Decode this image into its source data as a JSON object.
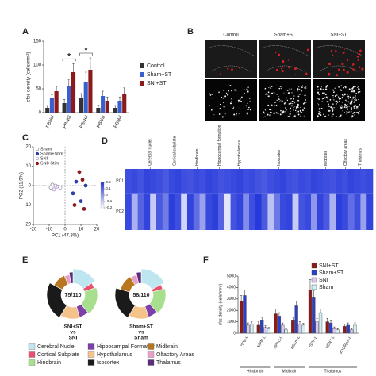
{
  "panel_labels": [
    "A",
    "B",
    "C",
    "D",
    "E",
    "F"
  ],
  "image_panel": {
    "columns": [
      "Control",
      "Sham+ST",
      "SNI+ST"
    ]
  },
  "chart_data": [
    {
      "type": "bar",
      "y_label": "cfos density (cells/mm²)",
      "categories": [
        "PBNcl",
        "PBNdl",
        "PBNel",
        "PBNsl",
        "PBNvl"
      ],
      "series": [
        {
          "name": "Control",
          "color": "#333333",
          "values": [
            10,
            20,
            30,
            10,
            10
          ],
          "errors": [
            5,
            8,
            10,
            6,
            5
          ]
        },
        {
          "name": "Sham+ST",
          "color": "#3a5fcd",
          "values": [
            30,
            55,
            65,
            35,
            25
          ],
          "errors": [
            8,
            15,
            20,
            10,
            8
          ]
        },
        {
          "name": "SNI+ST",
          "color": "#8b1a1a",
          "values": [
            45,
            85,
            90,
            25,
            40
          ],
          "errors": [
            10,
            18,
            25,
            8,
            12
          ]
        }
      ],
      "annotations": [
        {
          "text": "*",
          "category": "PBNdl"
        },
        {
          "text": "*",
          "category": "PBNel"
        }
      ],
      "ylim": [
        0,
        150
      ],
      "yticks": [
        0,
        50,
        100,
        150
      ]
    },
    {
      "type": "scatter",
      "x_label": "PC1 (47.3%)",
      "y_label": "PC2 (11.9%)",
      "series": [
        {
          "name": "Sham",
          "color": "#888888",
          "filled": false,
          "x": [
            -8,
            -5,
            -9
          ],
          "y": [
            0.5,
            -0.5,
            -1
          ]
        },
        {
          "name": "Sham+Stim",
          "color": "#2b3fa8",
          "filled": true,
          "x": [
            5,
            10,
            13,
            7
          ],
          "y": [
            -4,
            -8,
            0,
            2
          ]
        },
        {
          "name": "SNI",
          "color": "#a58cc8",
          "filled": false,
          "x": [
            -6,
            -3,
            -7
          ],
          "y": [
            0,
            -1,
            -2
          ]
        },
        {
          "name": "SNI+Stim",
          "color": "#8b1a1a",
          "filled": true,
          "x": [
            9,
            11,
            6,
            12
          ],
          "y": [
            7,
            3,
            -10,
            -12
          ]
        }
      ],
      "xlim": [
        -20,
        20
      ],
      "xticks": [
        -20,
        -10,
        0,
        10,
        20
      ],
      "ylim": [
        -20,
        20
      ],
      "yticks": [
        -20,
        -10,
        0,
        10,
        20
      ]
    },
    {
      "type": "heatmap",
      "column_groups": [
        "Cerebral nuclei",
        "Cortical subplate",
        "Hindbrain",
        "Hippocampal formation",
        "Hypothalamus",
        "Isocortex",
        "Midbrain",
        "Olfactory areas",
        "Thalamus"
      ],
      "rows": [
        "PC1",
        "PC2"
      ],
      "values": [
        [
          0.14,
          0.15,
          0.13,
          0.16,
          0.15,
          0.14,
          0.12,
          0.15,
          0.16,
          0.14,
          0.13,
          0.15,
          0.14,
          0.16,
          0.15,
          0.13,
          0.14,
          0.15,
          0.16,
          0.14,
          0.15,
          0.13,
          0.12,
          0.14,
          0.15,
          0.16,
          0.14,
          0.13,
          0.15,
          0.14,
          0.16,
          0.15,
          0.14,
          0.13,
          0.15,
          0.14,
          0.16,
          0.15,
          0.14,
          0.15
        ],
        [
          0.15,
          -0.05,
          0.1,
          0.16,
          -0.1,
          0.12,
          0.05,
          0.17,
          0.14,
          -0.12,
          0.16,
          0.08,
          -0.02,
          0.15,
          0.17,
          0.1,
          -0.15,
          0.13,
          0.16,
          0.02,
          0.14,
          0.18,
          0.12,
          -0.08,
          0.06,
          0.15,
          0.16,
          -0.1,
          0.13,
          0.15,
          0.0,
          0.16,
          0.12,
          -0.05,
          0.17,
          0.15,
          0.08,
          0.14,
          -0.02,
          0.16
        ]
      ],
      "colormap": [
        "#ffffff",
        "#1c2fd8"
      ],
      "clim": [
        -0.2,
        0.2
      ],
      "cticks": [
        0.2,
        0.1,
        0,
        -0.1,
        -0.2
      ]
    },
    {
      "type": "donut",
      "center_label": "75/110",
      "caption": [
        "SNI+ST",
        "vs",
        "SNI"
      ],
      "categories": [
        "Cerebral Nuclei",
        "Cortical Subplate",
        "Hindbrain",
        "Hippocampal Formation",
        "Hypothalamus",
        "Isocortex",
        "Midbrain",
        "Olfactory Areas",
        "Thalamus"
      ],
      "colors": [
        "#bde6f0",
        "#e8506e",
        "#a8df8e",
        "#7d3fa8",
        "#f4c38a",
        "#1a1a1a",
        "#b8761f",
        "#e6a0c8",
        "#5c2d7a"
      ],
      "values": [
        12,
        3,
        14,
        5,
        10,
        18,
        8,
        3,
        2
      ]
    },
    {
      "type": "donut",
      "center_label": "58/110",
      "caption": [
        "Sham+ST",
        "vs",
        "Sham"
      ],
      "categories": [
        "Cerebral Nuclei",
        "Cortical Subplate",
        "Hindbrain",
        "Hippocampal Formation",
        "Hypothalamus",
        "Isocortex",
        "Midbrain",
        "Olfactory Areas",
        "Thalamus"
      ],
      "colors": [
        "#bde6f0",
        "#e8506e",
        "#a8df8e",
        "#7d3fa8",
        "#f4c38a",
        "#1a1a1a",
        "#b8761f",
        "#e6a0c8",
        "#5c2d7a"
      ],
      "values": [
        10,
        2,
        10,
        4,
        8,
        12,
        7,
        3,
        2
      ]
    },
    {
      "type": "bar",
      "y_label": "cfos density (cells/mm²)",
      "categories": [
        "*IPB-L",
        "MRN-L",
        "#PAG-L",
        "#SCm-L",
        "*SPF-L",
        "VENT-L",
        "#DORpm-L"
      ],
      "group_labels": [
        "Hindbrain",
        "Midbrain",
        "Thalamus"
      ],
      "series": [
        {
          "name": "SNI+ST",
          "color": "#8b1a1a",
          "values": [
            2800,
            700,
            1700,
            1100,
            3800,
            1000,
            600
          ],
          "errors": [
            500,
            300,
            400,
            300,
            900,
            300,
            200
          ]
        },
        {
          "name": "Sham+ST",
          "color": "#2b3fc8",
          "values": [
            3300,
            1100,
            1500,
            2400,
            3100,
            900,
            700
          ],
          "errors": [
            500,
            300,
            300,
            400,
            600,
            200,
            200
          ]
        },
        {
          "name": "SNI",
          "color": "#d9c8ee",
          "values": [
            700,
            500,
            700,
            800,
            1000,
            400,
            300
          ],
          "errors": [
            200,
            150,
            200,
            200,
            300,
            150,
            100
          ]
        },
        {
          "name": "Sham",
          "color": "#d2f0f4",
          "values": [
            800,
            400,
            300,
            700,
            1800,
            300,
            700
          ],
          "errors": [
            200,
            100,
            100,
            150,
            300,
            100,
            200
          ]
        }
      ],
      "ylim": [
        0,
        5000
      ],
      "yticks": [
        0,
        1000,
        2000,
        3000,
        4000,
        5000
      ]
    }
  ]
}
